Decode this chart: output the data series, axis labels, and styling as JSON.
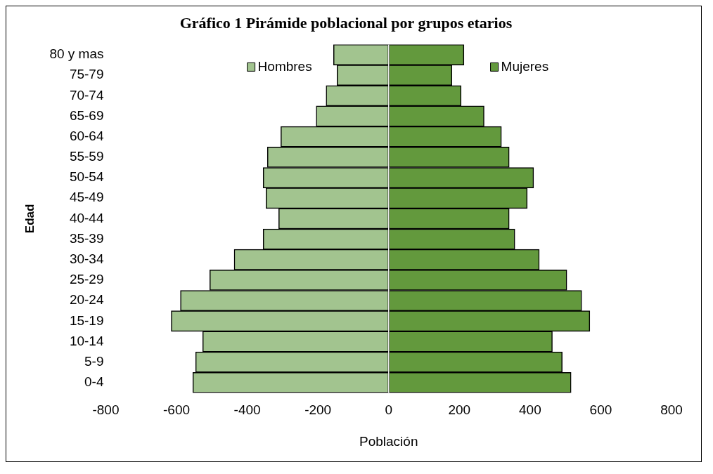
{
  "chart_data": {
    "type": "bar",
    "orientation": "horizontal",
    "stacked": true,
    "title": "Gráfico 1 Pirámide poblacional por grupos etarios",
    "xlabel": "Población",
    "ylabel": "Edad",
    "categories": [
      "80 y mas",
      "75-79",
      "70-74",
      "65-69",
      "60-64",
      "55-59",
      "50-54",
      "45-49",
      "40-44",
      "35-39",
      "30-34",
      "25-29",
      "20-24",
      "15-19",
      "10-14",
      "5-9",
      "0-4"
    ],
    "series": [
      {
        "name": "Hombres",
        "color": "#a2c48f",
        "values": [
          -156,
          -146,
          -177,
          -205,
          -305,
          -343,
          -355,
          -347,
          -311,
          -355,
          -437,
          -506,
          -589,
          -615,
          -526,
          -546,
          -554
        ]
      },
      {
        "name": "Mujeres",
        "color": "#63993d",
        "values": [
          213,
          179,
          205,
          270,
          319,
          341,
          410,
          392,
          341,
          357,
          426,
          504,
          546,
          569,
          463,
          491,
          516
        ]
      }
    ],
    "xlim": [
      -800,
      800
    ],
    "xticks": [
      -800,
      -600,
      -400,
      -200,
      0,
      200,
      400,
      600,
      800
    ],
    "ref_lines": [
      {
        "axis": "x",
        "value": 0,
        "color": "#e8e8e8"
      }
    ],
    "grid": false,
    "legend": "top"
  }
}
